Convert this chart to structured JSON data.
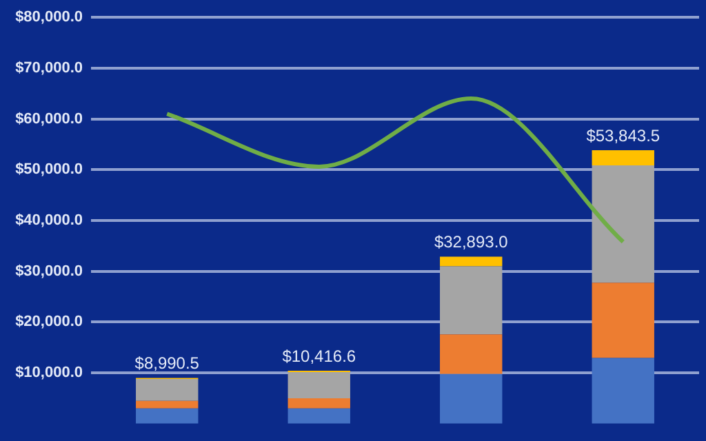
{
  "chart_data": {
    "type": "bar",
    "stacked": true,
    "categories": [
      null,
      null,
      null,
      null
    ],
    "series": [
      {
        "color": "#4472c4",
        "values": [
          3000,
          3000,
          9793,
          12943.5
        ]
      },
      {
        "color": "#ed7d31",
        "values": [
          1500,
          2000,
          7800,
          14800
        ]
      },
      {
        "color": "#a5a5a5",
        "values": [
          4290.5,
          5116.6,
          13400,
          23100
        ]
      },
      {
        "color": "#ffc000",
        "values": [
          200,
          300,
          1900,
          3000
        ]
      },
      {
        "type": "line",
        "color": "#70ad47",
        "values": [
          61000,
          50600,
          64000,
          35800
        ],
        "marker": "none"
      }
    ],
    "totals": [
      "$8,990.5",
      "$10,416.6",
      "$32,893.0",
      "$53,843.5"
    ],
    "ylim": [
      0,
      80000
    ],
    "yticks": [
      {
        "value": 10000,
        "label": "$10,000.0"
      },
      {
        "value": 20000,
        "label": "$20,000.0"
      },
      {
        "value": 30000,
        "label": "$30,000.0"
      },
      {
        "value": 40000,
        "label": "$40,000.0"
      },
      {
        "value": 50000,
        "label": "$50,000.0"
      },
      {
        "value": 60000,
        "label": "$60,000.0"
      },
      {
        "value": 70000,
        "label": "$70,000.0"
      },
      {
        "value": 80000,
        "label": "$80,000.0"
      }
    ],
    "grid": "y",
    "tick_labels": "y",
    "legend": false
  }
}
